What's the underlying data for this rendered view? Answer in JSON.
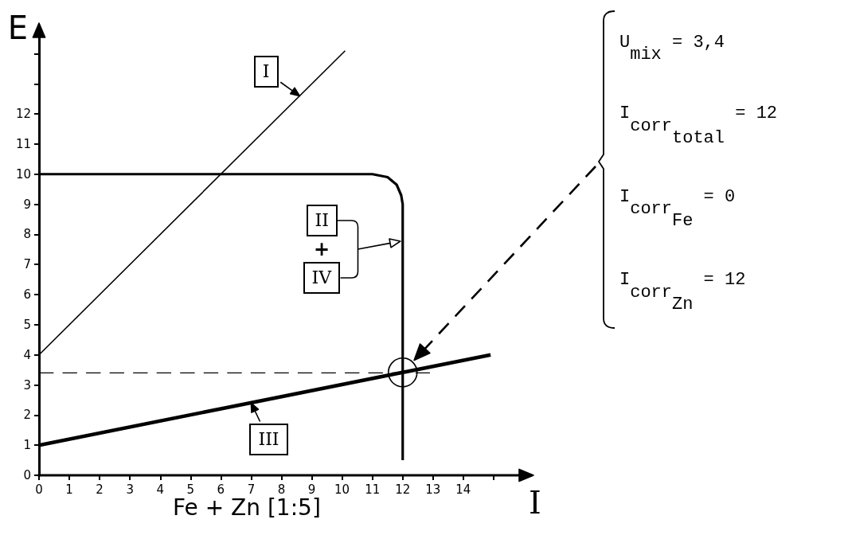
{
  "chart_data": {
    "type": "line",
    "title": "Fe + Zn [1:5]",
    "xlabel": "I",
    "ylabel": "E",
    "xlim": [
      0,
      16
    ],
    "xticks": [
      0,
      1,
      2,
      3,
      4,
      5,
      6,
      7,
      8,
      9,
      10,
      11,
      12,
      13,
      14,
      {
        "value": 15,
        "label": null
      }
    ],
    "ylim": [
      0,
      14.7
    ],
    "yticks": [
      0,
      1,
      2,
      3,
      4,
      5,
      6,
      7,
      8,
      9,
      10,
      11,
      12,
      {
        "value": 13,
        "label": null
      },
      {
        "value": 14,
        "label": null
      }
    ],
    "marker": "none",
    "series": [
      {
        "color": "#000000",
        "x": [
          0,
          10.1
        ],
        "values": [
          4,
          14.1
        ]
      },
      {
        "color": "#000000",
        "x": [
          0,
          11,
          11.5,
          11.8,
          11.95,
          12,
          12
        ],
        "values": [
          10,
          10,
          9.9,
          9.65,
          9.3,
          9,
          0.5
        ]
      },
      {
        "color": "#000000",
        "x": [
          0,
          14.9
        ],
        "values": [
          1,
          4
        ]
      },
      {
        "color": "#000000",
        "x": [
          0,
          12.9
        ],
        "values": [
          3.4,
          3.4
        ],
        "line_style": "dashed"
      }
    ],
    "annotations": [
      {
        "text": "I",
        "x": 8.6,
        "y": 12.6
      },
      "II",
      "+",
      "IV",
      {
        "text": "III",
        "x": 7,
        "y": 2.4
      },
      "U$_{mix}$ = 3,4",
      "I$_{corr}$$_{total}$ = 12",
      "I$_{corr}$$_{Fe}$ = 0",
      "I$_{corr}$$_{Zn}$ = 12"
    ]
  }
}
